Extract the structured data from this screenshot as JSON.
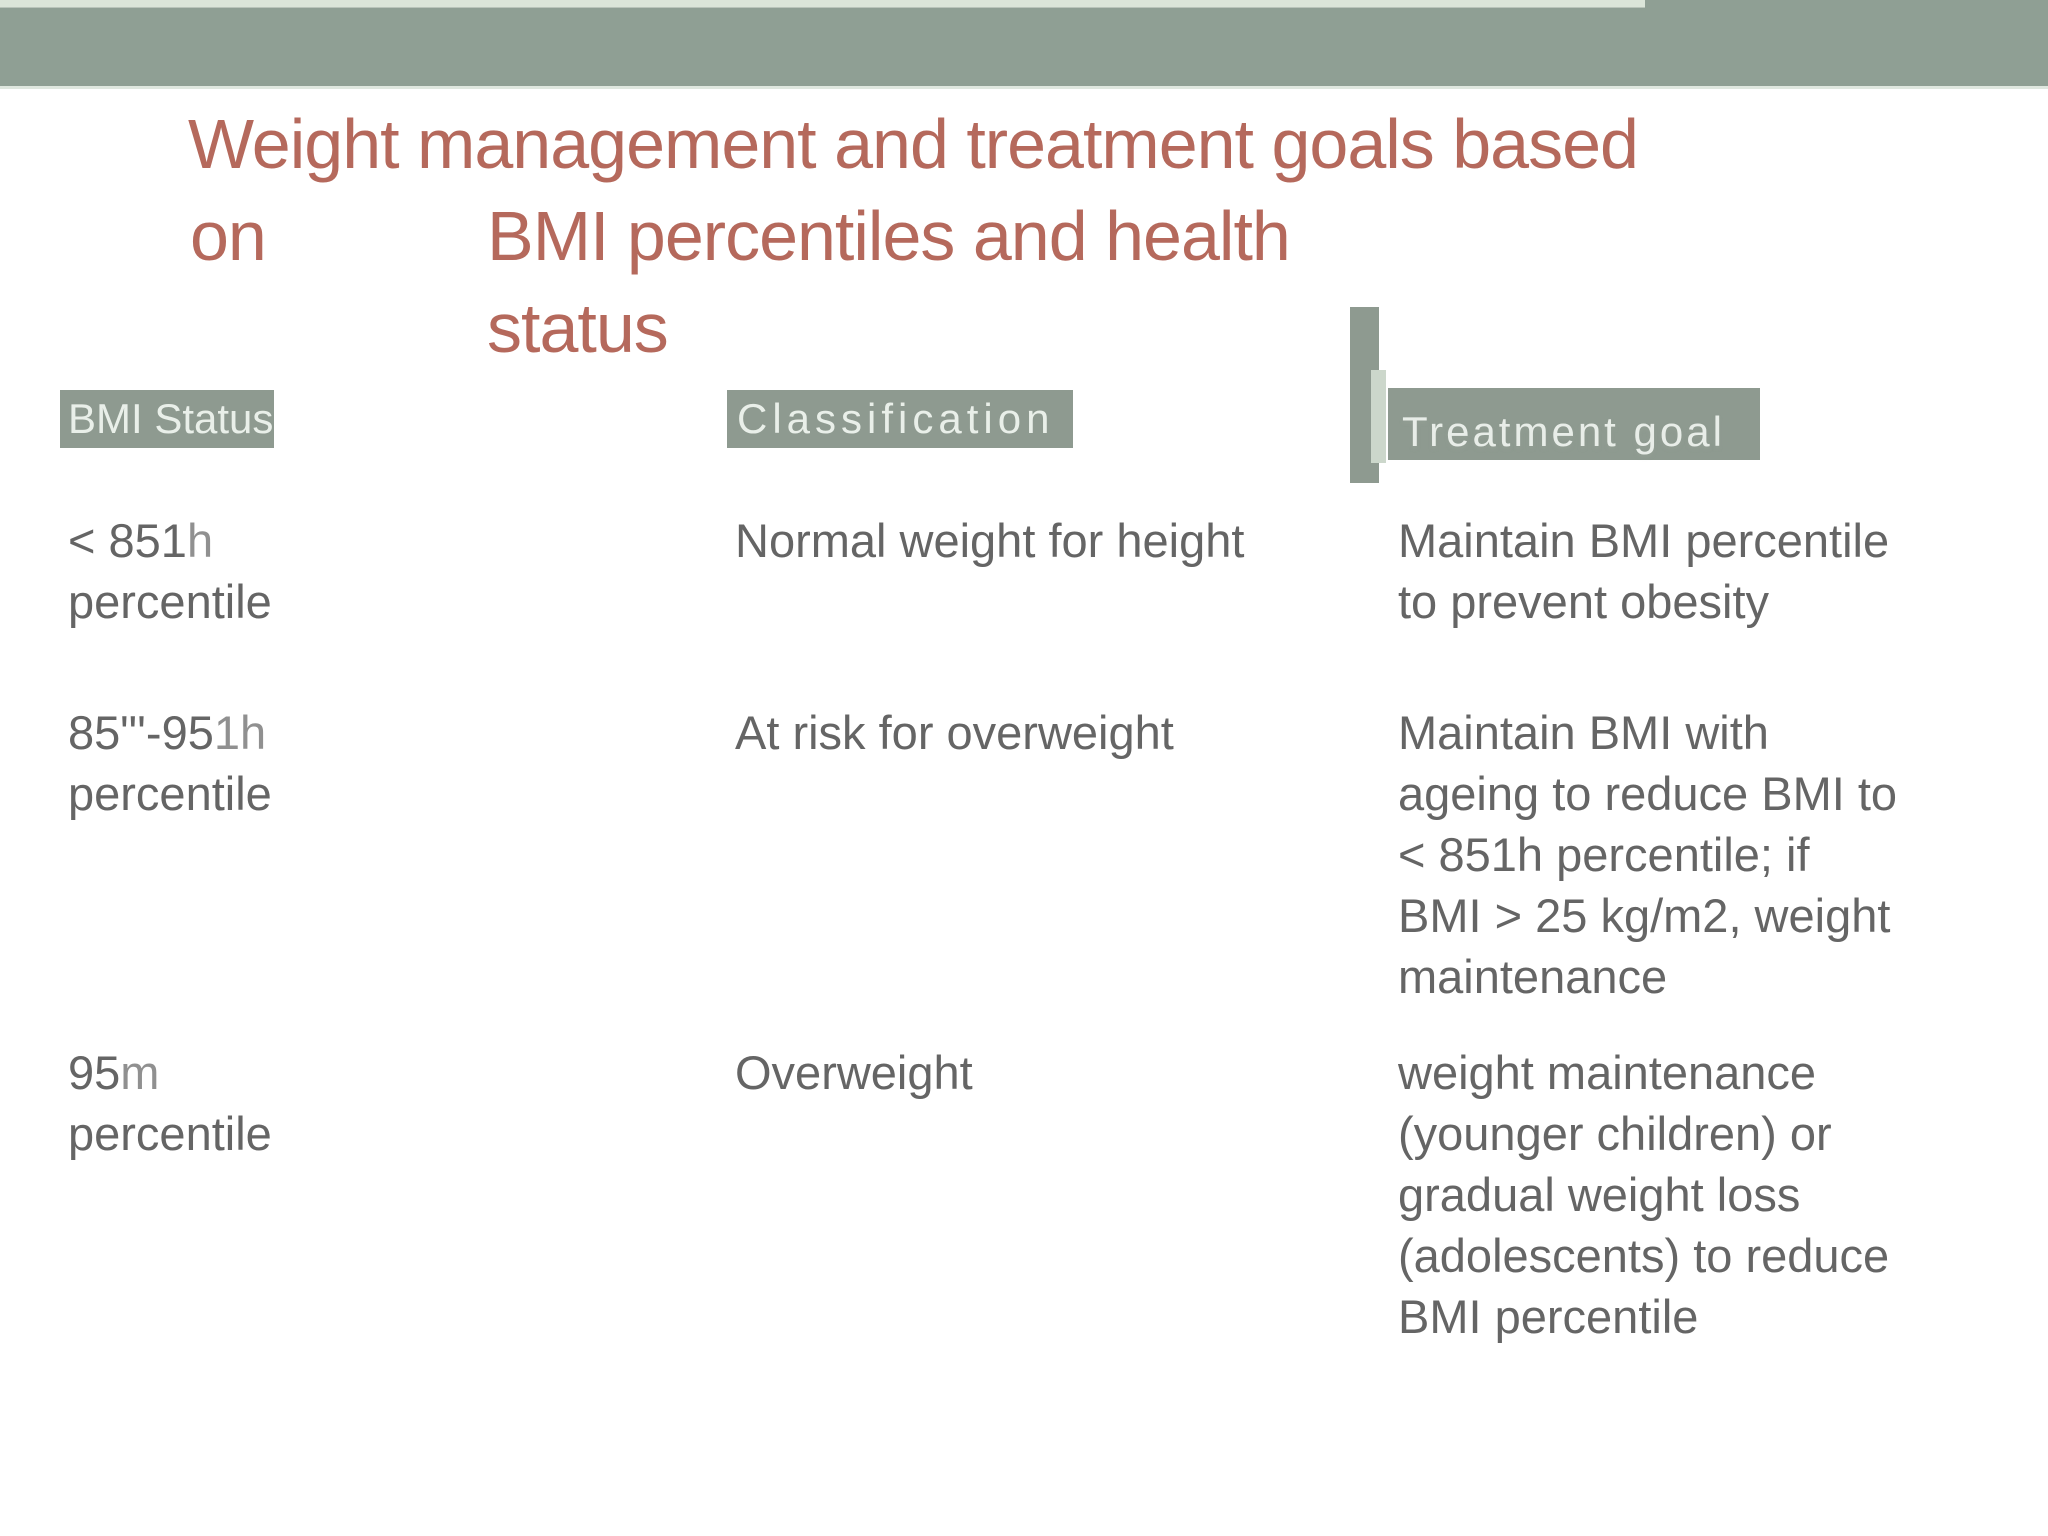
{
  "banner": {
    "band_color": "#8f9f94",
    "strip_color": "#dbe5d9"
  },
  "title": {
    "color": "#b5695c",
    "line1": "Weight management and treatment goals based",
    "line2_word": "on",
    "line2_rest": "BMI percentiles and health",
    "line3": "status"
  },
  "table": {
    "header_bg": "#8e9a90",
    "header_text_color": "#e9efe9",
    "body_text_color": "#656565",
    "headers": {
      "bmi": "BMI Status",
      "classification": "Classification",
      "treatment": "Treatment goal"
    },
    "rows": [
      {
        "bmi_main": "< 851",
        "bmi_muted": "h",
        "bmi_line2": "percentile",
        "classification": "Normal weight for height",
        "goal_lines": [
          "Maintain BMI percentile",
          "to prevent obesity"
        ]
      },
      {
        "bmi_main": "85\"'-95",
        "bmi_muted": "1h",
        "bmi_line2": "percentile",
        "classification": "At risk for overweight",
        "goal_lines": [
          "Maintain BMI with",
          "ageing to reduce BMI to",
          "< 851h percentile; if",
          "BMI > 25 kg/m2, weight",
          "maintenance"
        ]
      },
      {
        "bmi_main": "95",
        "bmi_muted": "m",
        "bmi_line2": "percentile",
        "classification": "Overweight",
        "goal_lines": [
          "weight maintenance",
          "(younger children) or",
          "gradual weight loss",
          "(adolescents) to reduce",
          "BMI percentile"
        ]
      }
    ]
  }
}
